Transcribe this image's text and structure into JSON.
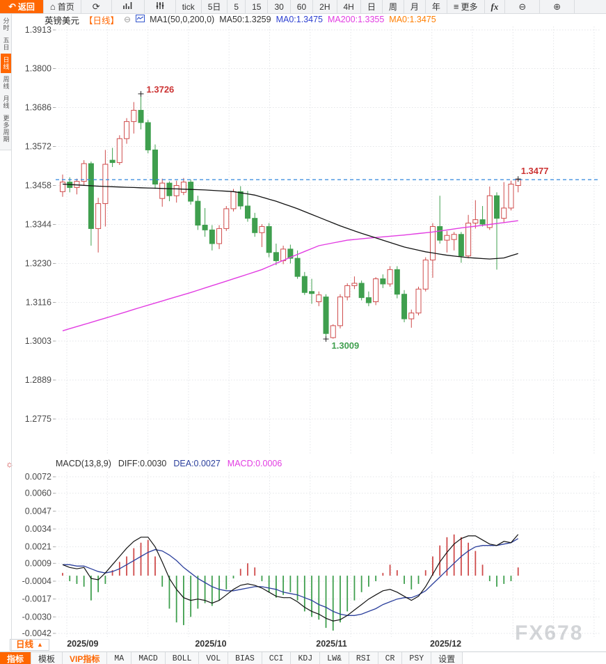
{
  "colors": {
    "accent_orange": "#ff6600",
    "up_red": "#cf4b4b",
    "down_green": "#3f9f4e",
    "ma50_line": "#111111",
    "ma200_line": "#e23ce2",
    "dashed_price_line": "#2e86de",
    "diff_line": "#111111",
    "dea_line": "#2b3f9c",
    "label_red": "#cc3333",
    "label_green": "#3f9f4e",
    "grid": "#e3e5e8",
    "axis_text": "#4a4a4a"
  },
  "toolbar": {
    "items": [
      {
        "name": "back-button",
        "label": "返回",
        "icon": "back",
        "accent": true
      },
      {
        "name": "home-button",
        "label": "首页",
        "icon": "home"
      },
      {
        "name": "refresh-button",
        "icon": "refresh"
      },
      {
        "name": "chart-style-button",
        "icon": "bars"
      },
      {
        "name": "indicator-panel-button",
        "icon": "sliders"
      },
      {
        "name": "period-tick-button",
        "label": "tick"
      },
      {
        "name": "period-5d-button",
        "label": "5日"
      },
      {
        "name": "period-5-button",
        "label": "5"
      },
      {
        "name": "period-15-button",
        "label": "15"
      },
      {
        "name": "period-30-button",
        "label": "30"
      },
      {
        "name": "period-60-button",
        "label": "60"
      },
      {
        "name": "period-2h-button",
        "label": "2H"
      },
      {
        "name": "period-4h-button",
        "label": "4H"
      },
      {
        "name": "period-day-button",
        "label": "日"
      },
      {
        "name": "period-week-button",
        "label": "周"
      },
      {
        "name": "period-month-button",
        "label": "月"
      },
      {
        "name": "period-year-button",
        "label": "年"
      },
      {
        "name": "more-button",
        "label": "更多",
        "icon": "menu"
      },
      {
        "name": "fx-button",
        "label": "fx",
        "icon": "fx"
      },
      {
        "name": "zoom-out-button",
        "icon": "zoom-out"
      },
      {
        "name": "zoom-in-button",
        "icon": "zoom-in"
      }
    ]
  },
  "sidebar": {
    "items": [
      {
        "label": "分时"
      },
      {
        "label": "五日"
      },
      {
        "label": "日线",
        "active": true
      },
      {
        "label": "周线"
      },
      {
        "label": "月线"
      },
      {
        "label": "更多周期"
      }
    ]
  },
  "symbol_header": {
    "name": "英镑美元",
    "period_tag": "【日线】",
    "ma_settings": "MA1(50,0,200,0)",
    "ma50": "MA50:1.3259",
    "ma0_primary": "MA0:1.3475",
    "ma200": "MA200:1.3355",
    "ma0_secondary": "MA0:1.3475"
  },
  "macd_header": {
    "formula": "MACD(13,8,9)",
    "diff": "DIFF:0.0030",
    "dea": "DEA:0.0027",
    "macd": "MACD:0.0006"
  },
  "bottom": {
    "period_box_label": "日线",
    "period_box_arrow": "▲",
    "watermark": "FX678",
    "tabs": [
      {
        "name": "tab-indicator",
        "label": "指标",
        "style": "active"
      },
      {
        "name": "tab-template",
        "label": "模板"
      },
      {
        "name": "tab-vip-indicator",
        "label": "VIP指标",
        "style": "vip"
      },
      {
        "name": "tab-ma",
        "label": "MA"
      },
      {
        "name": "tab-macd",
        "label": "MACD"
      },
      {
        "name": "tab-boll",
        "label": "BOLL"
      },
      {
        "name": "tab-vol",
        "label": "VOL"
      },
      {
        "name": "tab-bias",
        "label": "BIAS"
      },
      {
        "name": "tab-cci",
        "label": "CCI"
      },
      {
        "name": "tab-kdj",
        "label": "KDJ"
      },
      {
        "name": "tab-lw",
        "label": "LW&"
      },
      {
        "name": "tab-rsi",
        "label": "RSI"
      },
      {
        "name": "tab-cr",
        "label": "CR"
      },
      {
        "name": "tab-psy",
        "label": "PSY"
      },
      {
        "name": "tab-settings",
        "label": "设置"
      }
    ]
  },
  "chart_data": {
    "type": "candlestick",
    "symbol": "英镑美元",
    "period": "日线",
    "price_axis_ticks": [
      1.3913,
      1.38,
      1.3686,
      1.3572,
      1.3458,
      1.3344,
      1.323,
      1.3116,
      1.3003,
      1.2889,
      1.2775
    ],
    "macd_axis_ticks": [
      0.0072,
      0.006,
      0.0047,
      0.0034,
      0.0021,
      0.0009,
      -0.0004,
      -0.0017,
      -0.003,
      -0.0042
    ],
    "x_ticks": [
      {
        "label": "2025/09",
        "index": 1
      },
      {
        "label": "2025/10",
        "index": 19
      },
      {
        "label": "2025/11",
        "index": 36
      },
      {
        "label": "2025/12",
        "index": 52
      }
    ],
    "current_price": 1.3475,
    "annotations": {
      "high": {
        "index": 11,
        "price": 1.3726,
        "label": "1.3726"
      },
      "low": {
        "index": 37,
        "price": 1.3009,
        "label": "1.3009"
      },
      "last": {
        "index": 64,
        "price": 1.3477,
        "label": "1.3477"
      }
    },
    "candles": [
      [
        1.344,
        1.349,
        1.3425,
        1.3468
      ],
      [
        1.3468,
        1.3482,
        1.3438,
        1.3452
      ],
      [
        1.3452,
        1.3478,
        1.3432,
        1.347
      ],
      [
        1.347,
        1.3532,
        1.3458,
        1.3522
      ],
      [
        1.3522,
        1.3528,
        1.3282,
        1.3332
      ],
      [
        1.3332,
        1.3422,
        1.3262,
        1.3405
      ],
      [
        1.3405,
        1.3562,
        1.3338,
        1.352
      ],
      [
        1.3532,
        1.3568,
        1.3512,
        1.3525
      ],
      [
        1.3525,
        1.3605,
        1.3518,
        1.3595
      ],
      [
        1.3595,
        1.3655,
        1.358,
        1.3645
      ],
      [
        1.3645,
        1.3702,
        1.361,
        1.3678
      ],
      [
        1.3678,
        1.3726,
        1.3622,
        1.3642
      ],
      [
        1.3642,
        1.365,
        1.3552,
        1.3562
      ],
      [
        1.3562,
        1.3578,
        1.3448,
        1.3462
      ],
      [
        1.342,
        1.3478,
        1.3396,
        1.3465
      ],
      [
        1.3465,
        1.347,
        1.3412,
        1.3428
      ],
      [
        1.3428,
        1.3472,
        1.3408,
        1.3458
      ],
      [
        1.3438,
        1.348,
        1.343,
        1.3468
      ],
      [
        1.3468,
        1.3475,
        1.3402,
        1.3412
      ],
      [
        1.3412,
        1.3428,
        1.3328,
        1.3342
      ],
      [
        1.3342,
        1.3392,
        1.3308,
        1.3328
      ],
      [
        1.3328,
        1.3342,
        1.3268,
        1.3288
      ],
      [
        1.3288,
        1.3342,
        1.3272,
        1.3332
      ],
      [
        1.3332,
        1.3398,
        1.3325,
        1.339
      ],
      [
        1.339,
        1.3448,
        1.3382,
        1.344
      ],
      [
        1.344,
        1.3456,
        1.3388,
        1.3398
      ],
      [
        1.3398,
        1.3442,
        1.3352,
        1.3362
      ],
      [
        1.3362,
        1.3378,
        1.3308,
        1.332
      ],
      [
        1.332,
        1.3345,
        1.3278,
        1.3338
      ],
      [
        1.3338,
        1.3348,
        1.3248,
        1.3262
      ],
      [
        1.3262,
        1.3288,
        1.3225,
        1.3238
      ],
      [
        1.3238,
        1.3282,
        1.3228,
        1.3272
      ],
      [
        1.3272,
        1.3285,
        1.323,
        1.3245
      ],
      [
        1.3245,
        1.3268,
        1.3185,
        1.3192
      ],
      [
        1.3192,
        1.3205,
        1.3138,
        1.3145
      ],
      [
        1.3148,
        1.3185,
        1.3112,
        1.3142
      ],
      [
        1.3118,
        1.3148,
        1.3105,
        1.3138
      ],
      [
        1.3132,
        1.314,
        1.3009,
        1.3025
      ],
      [
        1.3013,
        1.3052,
        1.301,
        1.3048
      ],
      [
        1.3048,
        1.314,
        1.304,
        1.3132
      ],
      [
        1.3132,
        1.3172,
        1.3122,
        1.3165
      ],
      [
        1.3165,
        1.3192,
        1.3155,
        1.3172
      ],
      [
        1.3172,
        1.318,
        1.3122,
        1.313
      ],
      [
        1.313,
        1.3148,
        1.3105,
        1.3115
      ],
      [
        1.3118,
        1.319,
        1.3108,
        1.3185
      ],
      [
        1.3185,
        1.3198,
        1.3158,
        1.317
      ],
      [
        1.317,
        1.3222,
        1.3162,
        1.3212
      ],
      [
        1.3212,
        1.3222,
        1.3128,
        1.314
      ],
      [
        1.314,
        1.3152,
        1.3058,
        1.3068
      ],
      [
        1.3068,
        1.3095,
        1.3042,
        1.3085
      ],
      [
        1.3085,
        1.3162,
        1.3078,
        1.3155
      ],
      [
        1.3155,
        1.3248,
        1.3148,
        1.324
      ],
      [
        1.324,
        1.3348,
        1.3188,
        1.3338
      ],
      [
        1.3338,
        1.3428,
        1.3288,
        1.3298
      ],
      [
        1.3298,
        1.3325,
        1.3262,
        1.3312
      ],
      [
        1.33,
        1.3322,
        1.3268,
        1.3315
      ],
      [
        1.3315,
        1.3322,
        1.3232,
        1.3252
      ],
      [
        1.3252,
        1.3372,
        1.3245,
        1.3348
      ],
      [
        1.3348,
        1.3415,
        1.3332,
        1.3358
      ],
      [
        1.3358,
        1.3398,
        1.3338,
        1.3345
      ],
      [
        1.3335,
        1.3455,
        1.3328,
        1.3428
      ],
      [
        1.3428,
        1.3438,
        1.3212,
        1.3362
      ],
      [
        1.3362,
        1.3468,
        1.3348,
        1.3392
      ],
      [
        1.3392,
        1.3472,
        1.3385,
        1.3462
      ],
      [
        1.3458,
        1.3477,
        1.3438,
        1.3475
      ]
    ],
    "ma50_points": [
      [
        0,
        1.3462
      ],
      [
        5,
        1.3456
      ],
      [
        10,
        1.3452
      ],
      [
        16,
        1.3448
      ],
      [
        20,
        1.3445
      ],
      [
        24,
        1.344
      ],
      [
        27,
        1.343
      ],
      [
        30,
        1.3412
      ],
      [
        33,
        1.339
      ],
      [
        36,
        1.3365
      ],
      [
        39,
        1.334
      ],
      [
        42,
        1.3318
      ],
      [
        45,
        1.3298
      ],
      [
        48,
        1.3278
      ],
      [
        51,
        1.3264
      ],
      [
        54,
        1.3254
      ],
      [
        57,
        1.3247
      ],
      [
        60,
        1.3243
      ],
      [
        62,
        1.3246
      ],
      [
        64,
        1.3259
      ]
    ],
    "ma200_points": [
      [
        0,
        1.3033
      ],
      [
        6,
        1.307
      ],
      [
        12,
        1.3108
      ],
      [
        18,
        1.3145
      ],
      [
        24,
        1.3185
      ],
      [
        28,
        1.3212
      ],
      [
        32,
        1.3248
      ],
      [
        36,
        1.3282
      ],
      [
        40,
        1.3298
      ],
      [
        44,
        1.3306
      ],
      [
        48,
        1.3313
      ],
      [
        52,
        1.3322
      ],
      [
        56,
        1.3334
      ],
      [
        60,
        1.3344
      ],
      [
        64,
        1.3355
      ]
    ],
    "macd_series": {
      "diff": [
        0.0008,
        0.0006,
        0.0005,
        0.0006,
        -0.0002,
        -0.0003,
        0.0002,
        0.0008,
        0.0014,
        0.002,
        0.0025,
        0.0028,
        0.0028,
        0.0021,
        0.001,
        -0.0002,
        -0.001,
        -0.0016,
        -0.0018,
        -0.0017,
        -0.0018,
        -0.002,
        -0.0018,
        -0.0014,
        -0.001,
        -0.0007,
        -0.0006,
        -0.0007,
        -0.0009,
        -0.0012,
        -0.0015,
        -0.0016,
        -0.0016,
        -0.0019,
        -0.0023,
        -0.0026,
        -0.0028,
        -0.0031,
        -0.0033,
        -0.0032,
        -0.0029,
        -0.0025,
        -0.0021,
        -0.0017,
        -0.0014,
        -0.0011,
        -0.001,
        -0.0012,
        -0.0015,
        -0.0018,
        -0.0015,
        -0.0008,
        0.0001,
        0.001,
        0.0017,
        0.0023,
        0.0027,
        0.0029,
        0.0029,
        0.0026,
        0.0023,
        0.0022,
        0.0025,
        0.0024,
        0.003
      ],
      "dea": [
        0.0008,
        0.0008,
        0.0007,
        0.0007,
        0.0005,
        0.0003,
        0.0002,
        0.0003,
        0.0005,
        0.0008,
        0.0011,
        0.0014,
        0.0017,
        0.0019,
        0.0018,
        0.0015,
        0.0011,
        0.0006,
        0.0002,
        -0.0002,
        -0.0005,
        -0.0008,
        -0.001,
        -0.0011,
        -0.0011,
        -0.001,
        -0.0009,
        -0.0008,
        -0.0008,
        -0.0009,
        -0.001,
        -0.0012,
        -0.0013,
        -0.0014,
        -0.0016,
        -0.0018,
        -0.0021,
        -0.0023,
        -0.0026,
        -0.0028,
        -0.0029,
        -0.0029,
        -0.0028,
        -0.0026,
        -0.0024,
        -0.0021,
        -0.0019,
        -0.0017,
        -0.0016,
        -0.0016,
        -0.0014,
        -0.0011,
        -0.0006,
        -0.0001,
        0.0004,
        0.0009,
        0.0014,
        0.0018,
        0.0021,
        0.0022,
        0.0022,
        0.0022,
        0.0023,
        0.0024,
        0.0027
      ],
      "histogram": [
        0.0002,
        -0.0004,
        -0.0006,
        -0.0008,
        -0.0018,
        -0.0012,
        -0.0006,
        0.0004,
        0.001,
        0.0014,
        0.002,
        0.0024,
        0.0026,
        0.0014,
        -0.0008,
        -0.0024,
        -0.0034,
        -0.0036,
        -0.003,
        -0.0024,
        -0.002,
        -0.0022,
        -0.0018,
        -0.001,
        -0.0002,
        0.0005,
        0.0009,
        0.0006,
        -0.0004,
        -0.0012,
        -0.0016,
        -0.0014,
        -0.0012,
        -0.0018,
        -0.0026,
        -0.003,
        -0.0032,
        -0.0038,
        -0.004,
        -0.0034,
        -0.0026,
        -0.0018,
        -0.0012,
        -0.0008,
        -0.0004,
        0.0002,
        0.0008,
        0.0004,
        -0.0006,
        -0.001,
        -0.0006,
        0.0004,
        0.0014,
        0.0022,
        0.0028,
        0.003,
        0.0028,
        0.0024,
        0.0018,
        0.0008,
        -0.0004,
        -0.0008,
        -0.0006,
        -0.0004,
        0.0006
      ]
    }
  }
}
